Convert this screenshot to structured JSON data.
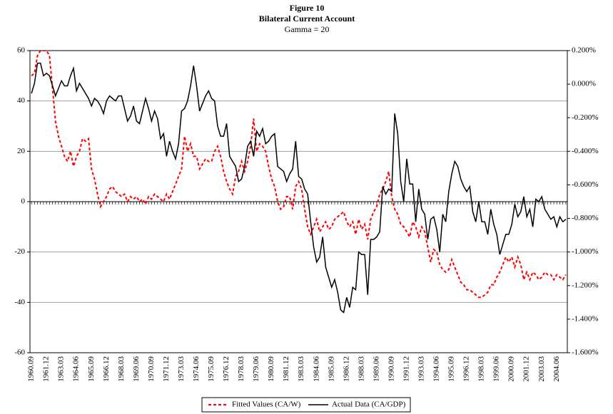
{
  "chart_data": {
    "type": "line",
    "title": "Figure 10",
    "subtitle": "Bilateral Current Account",
    "annotation": "Gamma = 20",
    "categories": [
      "1960.09",
      null,
      null,
      null,
      null,
      "1961.12",
      null,
      null,
      null,
      null,
      "1963.03",
      null,
      null,
      null,
      null,
      "1964.06",
      null,
      null,
      null,
      null,
      "1965.09",
      null,
      null,
      null,
      null,
      "1966.12",
      null,
      null,
      null,
      null,
      "1968.03",
      null,
      null,
      null,
      null,
      "1969.06",
      null,
      null,
      null,
      null,
      "1970.09",
      null,
      null,
      null,
      null,
      "1971.12",
      null,
      null,
      null,
      null,
      "1973.03",
      null,
      null,
      null,
      null,
      "1974.06",
      null,
      null,
      null,
      null,
      "1975.09",
      null,
      null,
      null,
      null,
      "1976.12",
      null,
      null,
      null,
      null,
      "1978.03",
      null,
      null,
      null,
      null,
      "1979.06",
      null,
      null,
      null,
      null,
      "1980.09",
      null,
      null,
      null,
      null,
      "1981.12",
      null,
      null,
      null,
      null,
      "1983.03",
      null,
      null,
      null,
      null,
      "1984.06",
      null,
      null,
      null,
      null,
      "1985.09",
      null,
      null,
      null,
      null,
      "1986.12",
      null,
      null,
      null,
      null,
      "1988.03",
      null,
      null,
      null,
      null,
      "1989.06",
      null,
      null,
      null,
      null,
      "1990.09",
      null,
      null,
      null,
      null,
      "1991.12",
      null,
      null,
      null,
      null,
      "1993.03",
      null,
      null,
      null,
      null,
      "1994.06",
      null,
      null,
      null,
      null,
      "1995.09",
      null,
      null,
      null,
      null,
      "1996.12",
      null,
      null,
      null,
      null,
      "1998.03",
      null,
      null,
      null,
      null,
      "1999.06",
      null,
      null,
      null,
      null,
      "2000.09",
      null,
      null,
      null,
      null,
      "2001.12",
      null,
      null,
      null,
      null,
      "2003.03",
      null,
      null,
      null,
      null,
      "2004.06",
      null,
      null,
      null
    ],
    "series": [
      {
        "name": "Fitted Values (CA/W)",
        "color": "#ff0000",
        "dashed": true,
        "axis": "y2",
        "values": [
          0.05,
          0.065,
          0.17,
          0.2,
          0.2,
          0.2,
          0.17,
          -0.025,
          -0.22,
          -0.31,
          -0.37,
          -0.43,
          -0.46,
          -0.4,
          -0.49,
          -0.43,
          -0.4,
          -0.325,
          -0.34,
          -0.325,
          -0.505,
          -0.565,
          -0.655,
          -0.73,
          -0.7,
          -0.67,
          -0.625,
          -0.61,
          -0.64,
          -0.655,
          -0.67,
          -0.655,
          -0.7,
          -0.67,
          -0.685,
          -0.67,
          -0.7,
          -0.685,
          -0.715,
          -0.67,
          -0.685,
          -0.655,
          -0.67,
          -0.685,
          -0.7,
          -0.655,
          -0.685,
          -0.64,
          -0.595,
          -0.55,
          -0.505,
          -0.31,
          -0.4,
          -0.355,
          -0.43,
          -0.43,
          -0.505,
          -0.475,
          -0.445,
          -0.46,
          -0.46,
          -0.4,
          -0.37,
          -0.43,
          -0.52,
          -0.58,
          -0.625,
          -0.655,
          -0.55,
          -0.52,
          -0.46,
          -0.52,
          -0.46,
          -0.37,
          -0.205,
          -0.4,
          -0.355,
          -0.37,
          -0.4,
          -0.49,
          -0.565,
          -0.61,
          -0.7,
          -0.745,
          -0.73,
          -0.67,
          -0.67,
          -0.745,
          -0.61,
          -0.58,
          -0.625,
          -0.745,
          -0.85,
          -0.895,
          -0.85,
          -0.805,
          -0.88,
          -0.85,
          -0.82,
          -0.865,
          -0.85,
          -0.805,
          -0.79,
          -0.775,
          -0.76,
          -0.82,
          -0.85,
          -0.82,
          -0.895,
          -0.805,
          -0.865,
          -0.835,
          -0.925,
          -0.805,
          -0.76,
          -0.73,
          -0.655,
          -0.625,
          -0.58,
          -0.52,
          -0.67,
          -0.745,
          -0.775,
          -0.835,
          -0.85,
          -0.88,
          -0.91,
          -0.82,
          -0.85,
          -0.91,
          -0.85,
          -0.88,
          -0.97,
          -1.06,
          -0.985,
          -1.0,
          -1.075,
          -1.105,
          -1.12,
          -1.105,
          -1.045,
          -1.09,
          -1.135,
          -1.18,
          -1.195,
          -1.225,
          -1.225,
          -1.24,
          -1.255,
          -1.27,
          -1.27,
          -1.255,
          -1.24,
          -1.195,
          -1.195,
          -1.15,
          -1.12,
          -1.075,
          -1.03,
          -1.06,
          -1.03,
          -1.09,
          -1.03,
          -1.075,
          -1.165,
          -1.12,
          -1.165,
          -1.12,
          -1.135,
          -1.165,
          -1.15,
          -1.12,
          -1.135,
          -1.135,
          -1.165,
          -1.135,
          -1.15,
          -1.165,
          -1.135
        ]
      },
      {
        "name": "Actual Data (CA/GDP)",
        "color": "#000000",
        "dashed": false,
        "values": [
          43,
          47,
          55,
          55,
          50,
          51,
          50,
          46,
          42,
          45,
          48,
          46,
          46,
          50,
          53,
          44,
          47,
          45,
          43,
          41,
          38,
          41,
          40,
          38,
          35,
          40,
          42,
          41,
          40,
          42,
          42,
          37,
          32,
          34,
          38,
          32,
          31,
          36,
          41,
          37,
          32,
          36,
          33,
          25,
          27,
          18,
          24,
          20,
          17,
          23,
          36,
          37,
          40,
          46,
          54,
          46,
          36,
          39,
          42,
          44,
          41,
          40,
          30,
          26,
          26,
          31,
          18,
          16,
          14,
          8,
          9,
          14,
          22,
          24,
          18,
          28,
          26,
          29,
          23,
          24,
          26,
          27,
          14,
          13,
          12,
          8,
          11,
          13,
          24,
          10,
          9,
          5,
          3,
          -8,
          -18,
          -24,
          -22,
          -14,
          -26,
          -30,
          -34,
          -31,
          -36,
          -43,
          -44,
          -38,
          -42,
          -34,
          -35,
          -20,
          -21,
          -21,
          -37,
          -15,
          -15,
          -14,
          -12,
          6,
          3,
          5,
          4,
          35,
          27,
          8,
          0,
          17,
          7,
          7,
          -8,
          5,
          -3,
          -5,
          -15,
          -7,
          -6,
          -11,
          -20,
          -5,
          -8,
          4,
          11,
          16,
          14,
          9,
          6,
          4,
          6,
          -4,
          -8,
          0,
          -8,
          -8,
          -13,
          -3,
          -9,
          -13,
          -21,
          -17,
          -13,
          -13,
          -9,
          -1,
          -6,
          -4,
          2,
          -6,
          -3,
          -10,
          1,
          0,
          2,
          -3,
          -5,
          -7,
          -6,
          -10,
          -6,
          -8,
          -7
        ]
      }
    ],
    "ylim": [
      -60,
      60
    ],
    "yticks": [
      -60,
      -40,
      -20,
      0,
      20,
      40,
      60
    ],
    "y2lim": [
      -1.6,
      0.2
    ],
    "y2ticks": [
      {
        "value": -1.6,
        "label": "-1.600%"
      },
      {
        "value": -1.4,
        "label": "-1.400%"
      },
      {
        "value": -1.2,
        "label": "-1.200%"
      },
      {
        "value": -1.0,
        "label": "-1.000%"
      },
      {
        "value": -0.8,
        "label": "-0.800%"
      },
      {
        "value": -0.6,
        "label": "-0.600%"
      },
      {
        "value": -0.4,
        "label": "-0.400%"
      },
      {
        "value": -0.2,
        "label": "-0.200%"
      },
      {
        "value": 0,
        "label": "0.000%"
      },
      {
        "value": 0.2,
        "label": "0.200%"
      }
    ],
    "grid": true,
    "legend": "bottom"
  }
}
